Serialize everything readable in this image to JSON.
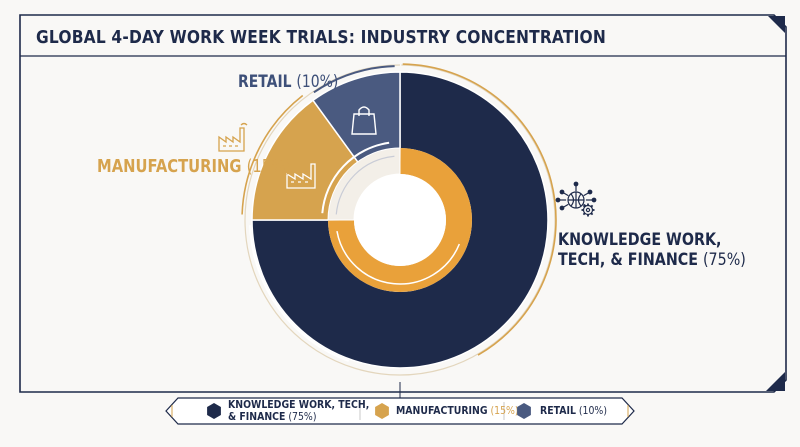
{
  "title": "GLOBAL 4-DAY WORK WEEK TRIALS: INDUSTRY CONCENTRATION",
  "colors": {
    "knowledge": "#1e2a4a",
    "manufacturing": "#d6a34e",
    "manufacturing_inner": "#e9a13a",
    "retail": "#4a5a80",
    "frame": "#1e2a4a",
    "accent": "#d6a34e"
  },
  "icons": {
    "knowledge": "network-gear-icon",
    "manufacturing": "factory-icon",
    "retail": "shopping-bag-icon"
  },
  "callouts": {
    "retail": {
      "name": "RETAIL",
      "pct": "(10%)"
    },
    "manufacturing": {
      "name": "MANUFACTURING",
      "pct": "(15%)"
    },
    "knowledge": {
      "line1": "KNOWLEDGE WORK,",
      "line2": "TECH, & FINANCE",
      "pct": "(75%)"
    }
  },
  "legend": [
    {
      "line1": "KNOWLEDGE WORK, TECH,",
      "line2": "& FINANCE",
      "pct": "(75%)",
      "color": "#1e2a4a"
    },
    {
      "name": "MANUFACTURING",
      "pct": "(15%)",
      "color": "#d6a34e"
    },
    {
      "name": "RETAIL",
      "pct": "(10%)",
      "color": "#4a5a80"
    }
  ],
  "chart_data": {
    "type": "pie",
    "title": "GLOBAL 4-DAY WORK WEEK TRIALS: INDUSTRY CONCENTRATION",
    "categories": [
      "KNOWLEDGE WORK, TECH, & FINANCE",
      "MANUFACTURING",
      "RETAIL"
    ],
    "values": [
      75,
      15,
      10
    ],
    "unit": "%",
    "legend_position": "bottom"
  }
}
